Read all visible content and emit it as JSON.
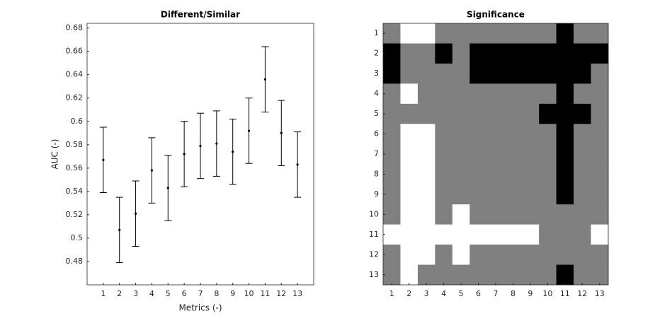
{
  "chart_data": [
    {
      "type": "errorbar",
      "title": "Different/Similar",
      "xlabel": "Metrics (-)",
      "ylabel": "AUC (-)",
      "x": [
        1,
        2,
        3,
        4,
        5,
        6,
        7,
        8,
        9,
        10,
        11,
        12,
        13
      ],
      "values": [
        0.567,
        0.507,
        0.521,
        0.558,
        0.543,
        0.572,
        0.579,
        0.581,
        0.574,
        0.592,
        0.636,
        0.59,
        0.563
      ],
      "errors": [
        0.028,
        0.028,
        0.028,
        0.028,
        0.028,
        0.028,
        0.028,
        0.028,
        0.028,
        0.028,
        0.028,
        0.028,
        0.028
      ],
      "color": "#000000",
      "xlim": [
        0,
        14
      ],
      "xticks": [
        1,
        2,
        3,
        4,
        5,
        6,
        7,
        8,
        9,
        10,
        11,
        12,
        13
      ],
      "ylim": [
        0.46,
        0.684
      ],
      "yticks": [
        0.48,
        0.5,
        0.52,
        0.54,
        0.56,
        0.58,
        0.6,
        0.62,
        0.64,
        0.66,
        0.68
      ]
    },
    {
      "type": "heatmap",
      "title": "Significance",
      "colormap": "gray",
      "clim": [
        0,
        1
      ],
      "xlim": [
        0.5,
        13.5
      ],
      "ylim": [
        0.5,
        13.5
      ],
      "yreverse": true,
      "xticks": [
        1,
        2,
        3,
        4,
        5,
        6,
        7,
        8,
        9,
        10,
        11,
        12,
        13
      ],
      "yticks": [
        1,
        2,
        3,
        4,
        5,
        6,
        7,
        8,
        9,
        10,
        11,
        12,
        13
      ],
      "z": [
        [
          0.5,
          1,
          1,
          0.5,
          0.5,
          0.5,
          0.5,
          0.5,
          0.5,
          0.5,
          0,
          0.5,
          0.5
        ],
        [
          0,
          0.5,
          0.5,
          0,
          0.5,
          0,
          0,
          0,
          0,
          0,
          0,
          0,
          0
        ],
        [
          0,
          0.5,
          0.5,
          0.5,
          0.5,
          0,
          0,
          0,
          0,
          0,
          0,
          0,
          0.5
        ],
        [
          0.5,
          1,
          0.5,
          0.5,
          0.5,
          0.5,
          0.5,
          0.5,
          0.5,
          0.5,
          0,
          0.5,
          0.5
        ],
        [
          0.5,
          0.5,
          0.5,
          0.5,
          0.5,
          0.5,
          0.5,
          0.5,
          0.5,
          0,
          0,
          0,
          0.5
        ],
        [
          0.5,
          1,
          1,
          0.5,
          0.5,
          0.5,
          0.5,
          0.5,
          0.5,
          0.5,
          0,
          0.5,
          0.5
        ],
        [
          0.5,
          1,
          1,
          0.5,
          0.5,
          0.5,
          0.5,
          0.5,
          0.5,
          0.5,
          0,
          0.5,
          0.5
        ],
        [
          0.5,
          1,
          1,
          0.5,
          0.5,
          0.5,
          0.5,
          0.5,
          0.5,
          0.5,
          0,
          0.5,
          0.5
        ],
        [
          0.5,
          1,
          1,
          0.5,
          0.5,
          0.5,
          0.5,
          0.5,
          0.5,
          0.5,
          0,
          0.5,
          0.5
        ],
        [
          0.5,
          1,
          1,
          0.5,
          1,
          0.5,
          0.5,
          0.5,
          0.5,
          0.5,
          0.5,
          0.5,
          0.5
        ],
        [
          1,
          1,
          1,
          1,
          1,
          1,
          1,
          1,
          1,
          0.5,
          0.5,
          0.5,
          1
        ],
        [
          0.5,
          1,
          1,
          0.5,
          1,
          0.5,
          0.5,
          0.5,
          0.5,
          0.5,
          0.5,
          0.5,
          0.5
        ],
        [
          0.5,
          1,
          0.5,
          0.5,
          0.5,
          0.5,
          0.5,
          0.5,
          0.5,
          0.5,
          0,
          0.5,
          0.5
        ]
      ]
    }
  ]
}
